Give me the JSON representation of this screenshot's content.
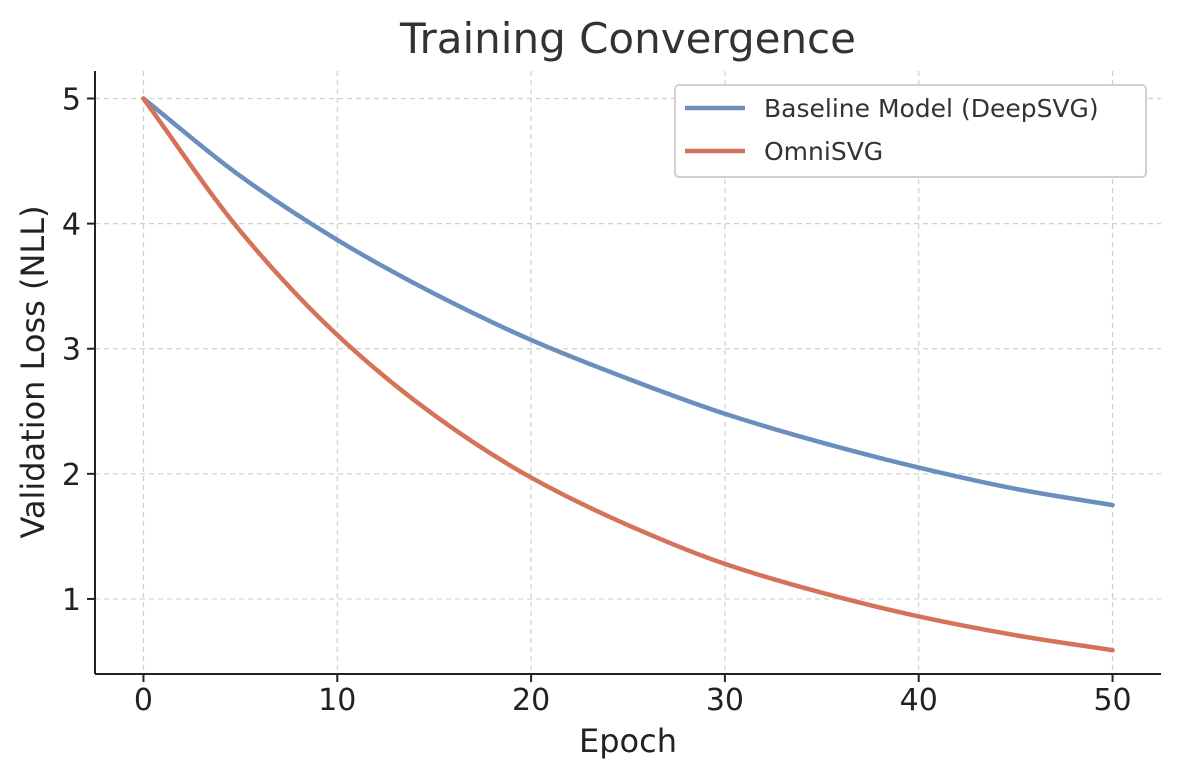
{
  "chart_data": {
    "type": "line",
    "title": "Training Convergence",
    "xlabel": "Epoch",
    "ylabel": "Validation Loss (NLL)",
    "xlim": [
      -2.5,
      52.5
    ],
    "ylim": [
      0.4,
      5.22
    ],
    "xticks": [
      0,
      10,
      20,
      30,
      40,
      50
    ],
    "xtick_labels": [
      "0",
      "10",
      "20",
      "30",
      "40",
      "50"
    ],
    "yticks": [
      1,
      2,
      3,
      4,
      5
    ],
    "ytick_labels": [
      "1",
      "2",
      "3",
      "4",
      "5"
    ],
    "grid": true,
    "legend_position": "top-right",
    "series": [
      {
        "name": "Baseline Model (DeepSVG)",
        "color": "#6a8fbf",
        "x": [
          0,
          5,
          10,
          15,
          20,
          25,
          30,
          35,
          40,
          45,
          50
        ],
        "values": [
          5.0,
          4.38,
          3.87,
          3.44,
          3.07,
          2.76,
          2.48,
          2.25,
          2.05,
          1.88,
          1.75
        ]
      },
      {
        "name": "OmniSVG",
        "color": "#d4735a",
        "x": [
          0,
          5,
          10,
          15,
          20,
          25,
          30,
          35,
          40,
          45,
          50
        ],
        "values": [
          5.0,
          3.94,
          3.11,
          2.47,
          1.97,
          1.59,
          1.28,
          1.05,
          0.86,
          0.71,
          0.59
        ]
      }
    ]
  }
}
